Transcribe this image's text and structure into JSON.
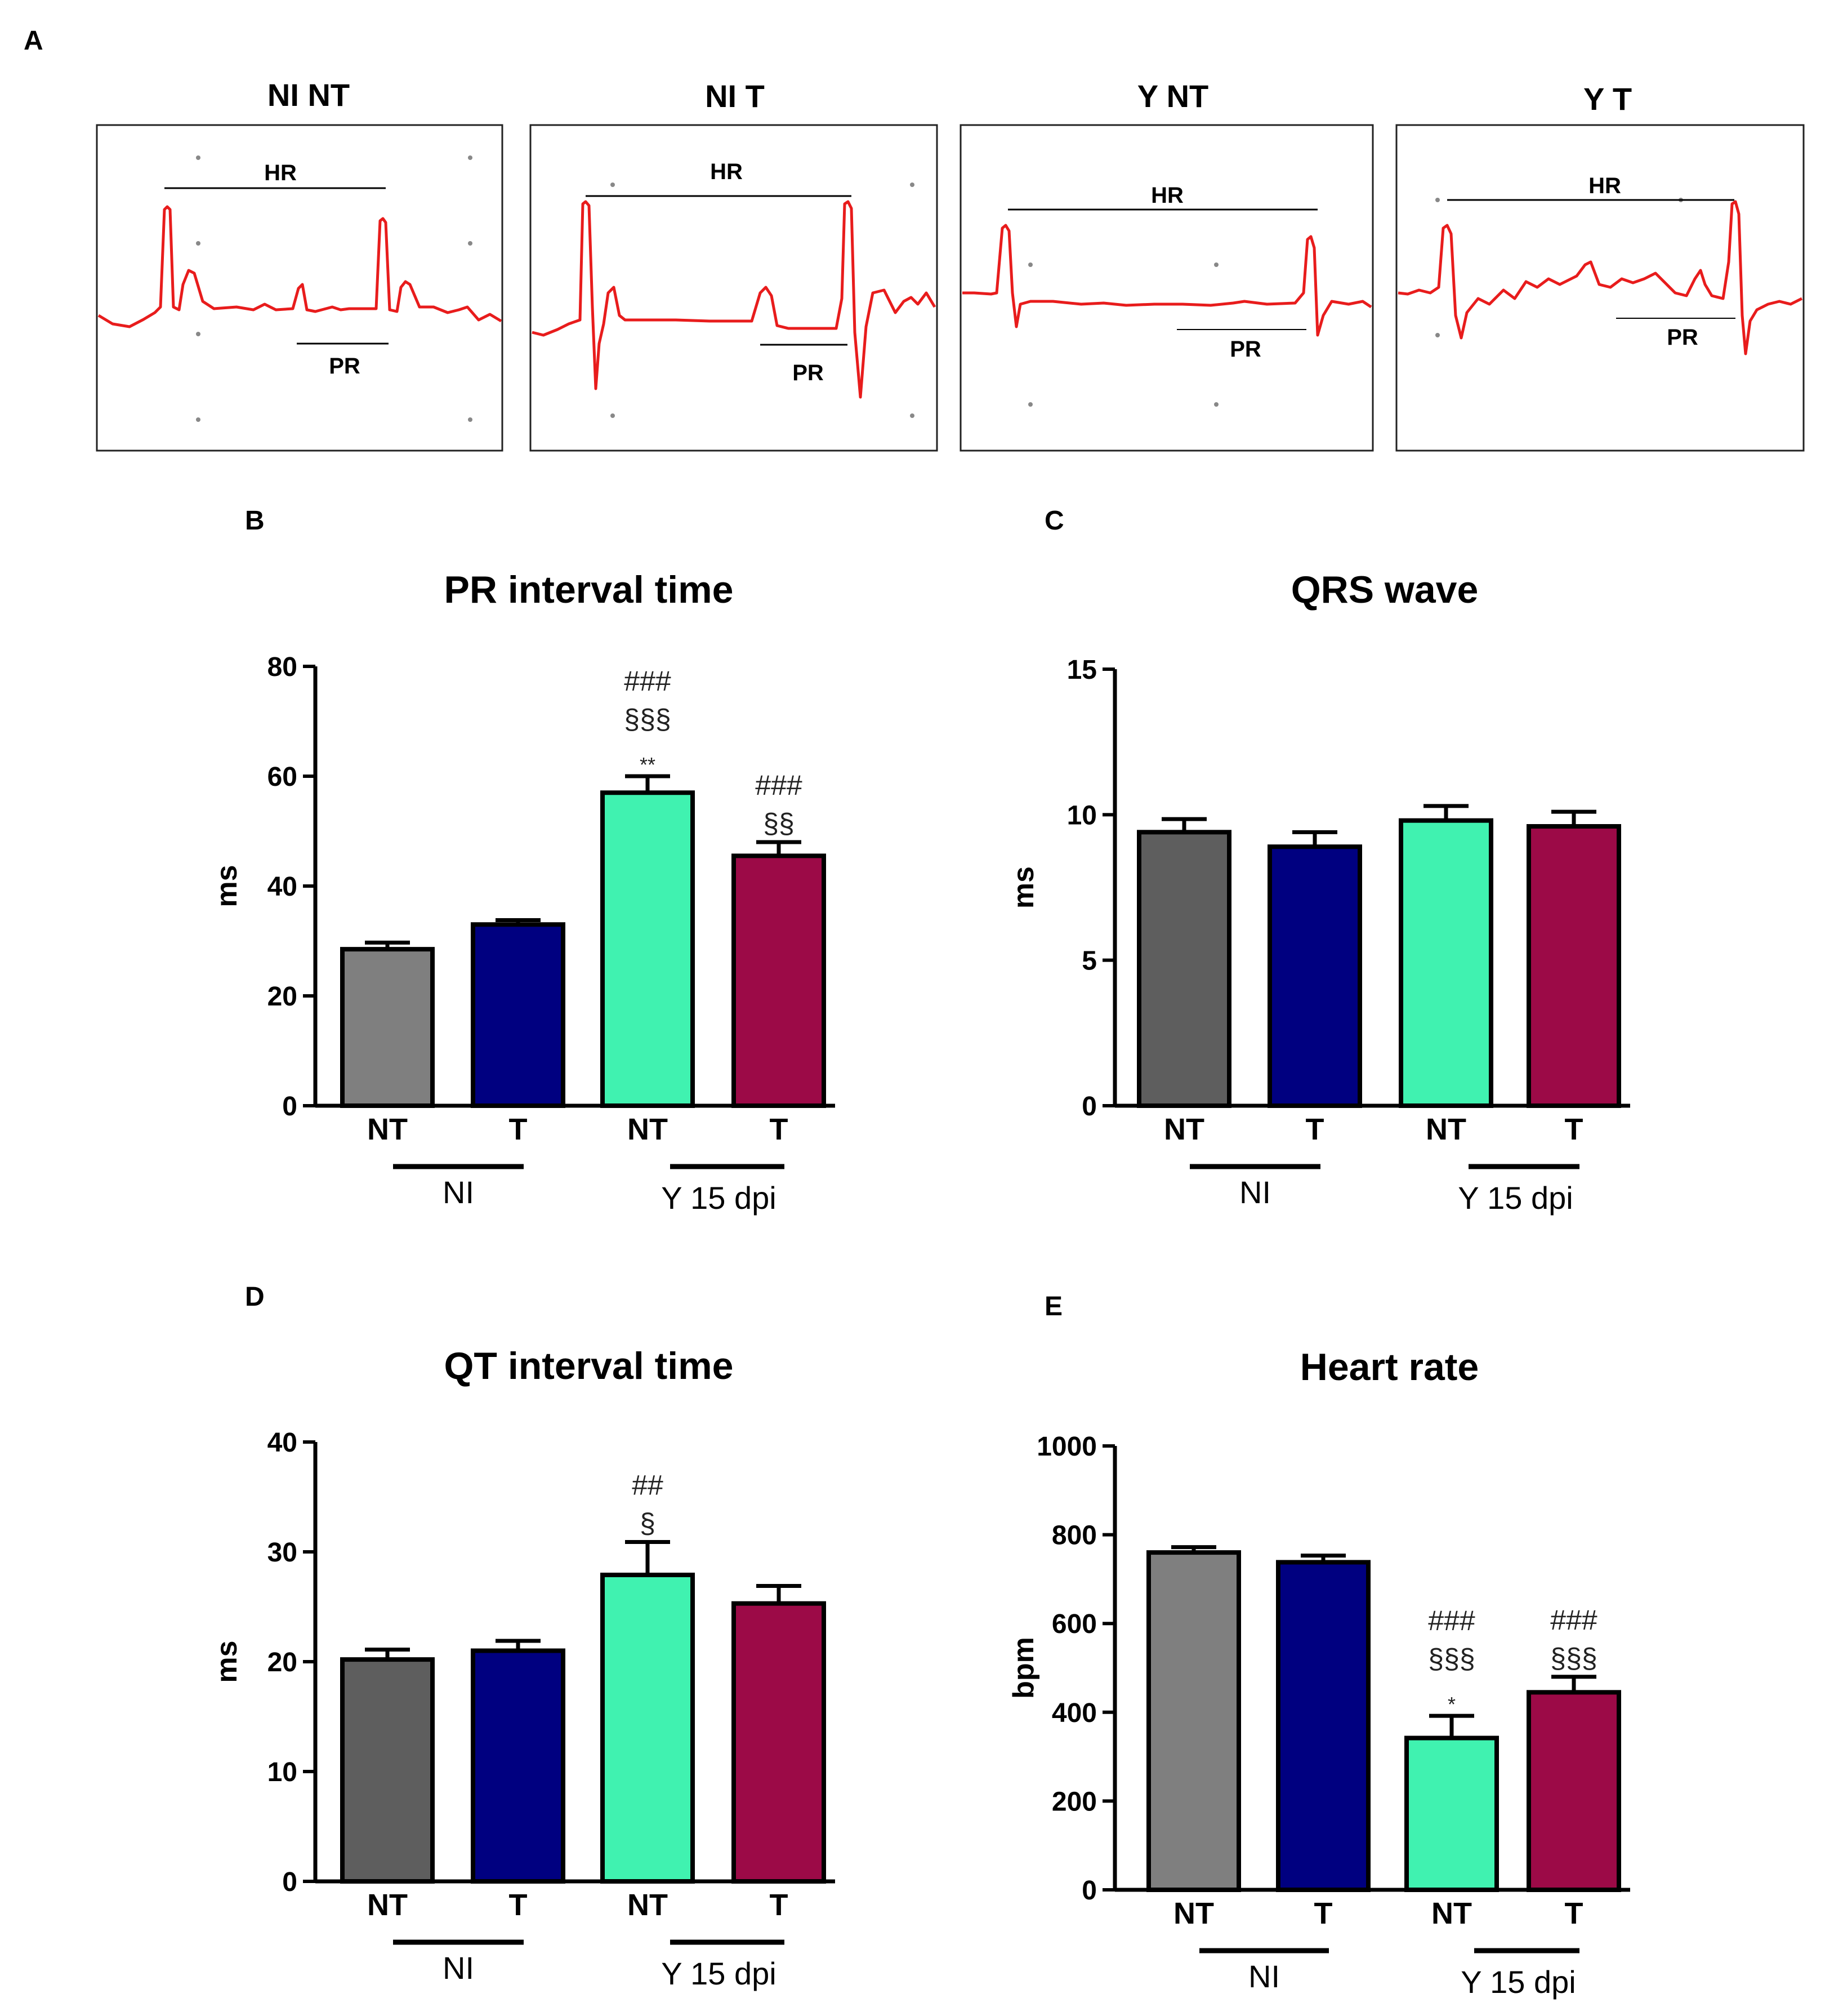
{
  "panel_letters": {
    "a": "A",
    "b": "B",
    "c": "C",
    "d": "D",
    "e": "E"
  },
  "ecg": {
    "panels": [
      {
        "title": "NI NT",
        "hr_label": "HR",
        "pr_label": "PR"
      },
      {
        "title": "NI T",
        "hr_label": "HR",
        "pr_label": "PR"
      },
      {
        "title": "Y NT",
        "hr_label": "HR",
        "pr_label": "PR"
      },
      {
        "title": "Y T",
        "hr_label": "HR",
        "pr_label": "PR"
      }
    ],
    "trace_color": "#e81c1c"
  },
  "group_labels": {
    "left": "NI",
    "right": "Y 15 dpi"
  },
  "colors": {
    "nint_dark": "#5e5e5e",
    "nint_light": "#7f7f7f",
    "nit": "#000080",
    "ynt": "#40f2b0",
    "yt": "#9c0a47",
    "axis": "#000000"
  },
  "chart_data": [
    {
      "id": "B",
      "type": "bar",
      "title": "PR interval time",
      "ylabel": "ms",
      "xlabel": "",
      "ylim": [
        0,
        80
      ],
      "yticks": [
        0,
        20,
        40,
        60,
        80
      ],
      "categories": [
        "NT",
        "T",
        "NT",
        "T"
      ],
      "values": [
        28.5,
        33,
        57,
        45.5
      ],
      "errors": [
        1.2,
        0.8,
        3,
        2.5
      ],
      "annotations": [
        [],
        [],
        [
          "###",
          "§§§",
          "**"
        ],
        [
          "###",
          "§§"
        ]
      ],
      "bar_colors": [
        "#7f7f7f",
        "#000080",
        "#40f2b0",
        "#9c0a47"
      ]
    },
    {
      "id": "C",
      "type": "bar",
      "title": "QRS wave",
      "ylabel": "ms",
      "xlabel": "",
      "ylim": [
        0,
        15
      ],
      "yticks": [
        0,
        5,
        10,
        15
      ],
      "categories": [
        "NT",
        "T",
        "NT",
        "T"
      ],
      "values": [
        9.4,
        8.9,
        9.8,
        9.6
      ],
      "errors": [
        0.45,
        0.5,
        0.5,
        0.5
      ],
      "annotations": [
        [],
        [],
        [],
        []
      ],
      "bar_colors": [
        "#5e5e5e",
        "#000080",
        "#40f2b0",
        "#9c0a47"
      ]
    },
    {
      "id": "D",
      "type": "bar",
      "title": "QT interval time",
      "ylabel": "ms",
      "xlabel": "",
      "ylim": [
        0,
        40
      ],
      "yticks": [
        0,
        10,
        20,
        30,
        40
      ],
      "categories": [
        "NT",
        "T",
        "NT",
        "T"
      ],
      "values": [
        20.2,
        21,
        27.9,
        25.3
      ],
      "errors": [
        0.9,
        0.9,
        3,
        1.6
      ],
      "annotations": [
        [],
        [],
        [
          "##",
          "§"
        ],
        []
      ],
      "bar_colors": [
        "#5e5e5e",
        "#000080",
        "#40f2b0",
        "#9c0a47"
      ]
    },
    {
      "id": "E",
      "type": "bar",
      "title": "Heart rate",
      "ylabel": "bpm",
      "xlabel": "",
      "ylim": [
        0,
        1000
      ],
      "yticks": [
        0,
        200,
        400,
        600,
        800,
        1000
      ],
      "categories": [
        "NT",
        "T",
        "NT",
        "T"
      ],
      "values": [
        760,
        738,
        342,
        445
      ],
      "errors": [
        12,
        15,
        50,
        35
      ],
      "annotations": [
        [],
        [],
        [
          "###",
          "§§§",
          "*"
        ],
        [
          "###",
          "§§§"
        ]
      ],
      "bar_colors": [
        "#7f7f7f",
        "#000080",
        "#40f2b0",
        "#9c0a47"
      ]
    }
  ]
}
